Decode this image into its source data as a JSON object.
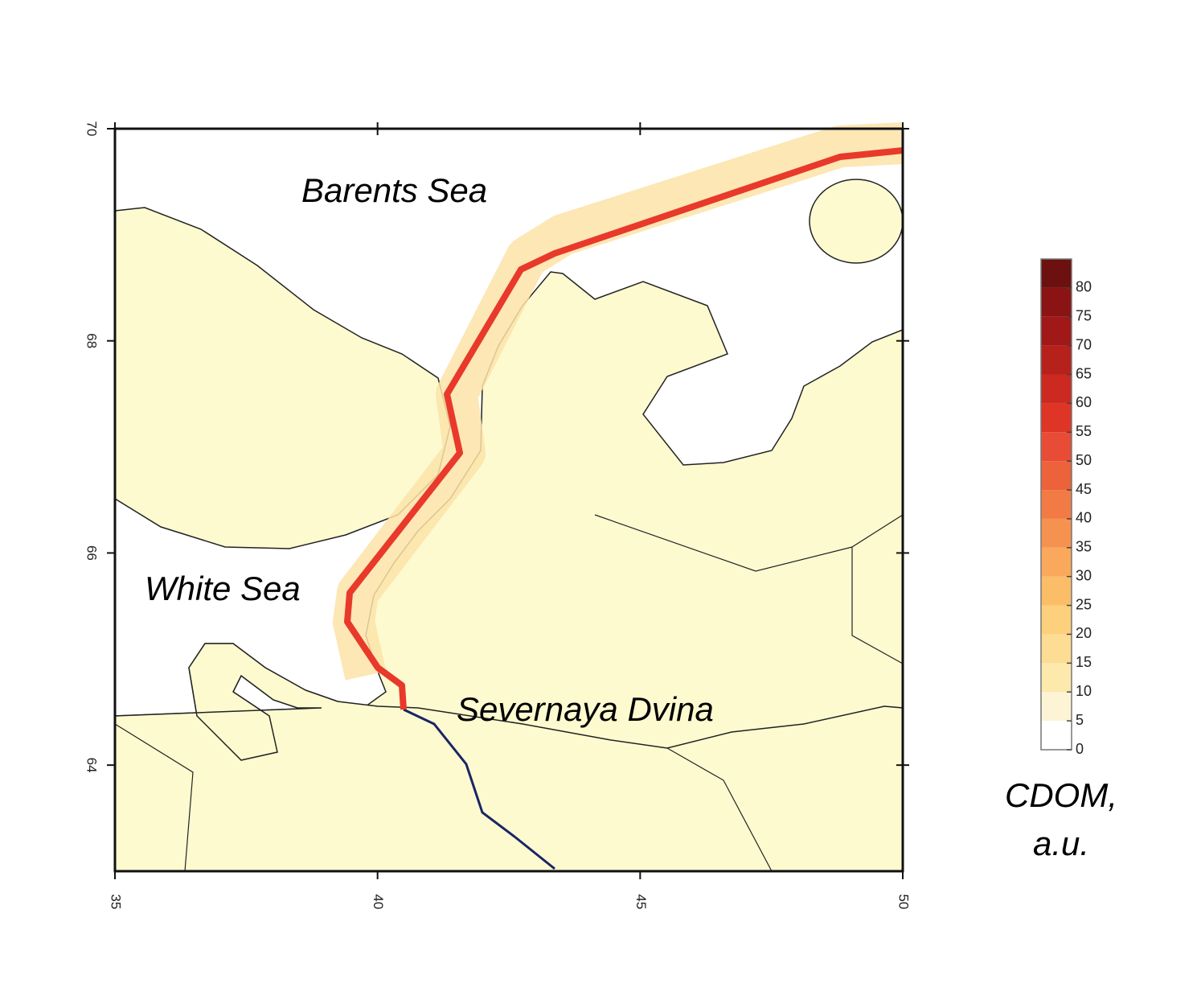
{
  "map": {
    "labels": [
      "Barents Sea",
      "White Sea",
      "Severnaya Dvina"
    ],
    "xlim": [
      35,
      50
    ],
    "xticks": [
      35,
      40,
      45,
      50
    ],
    "ylim": [
      63,
      70
    ],
    "yticks": [
      64,
      66,
      68,
      70
    ],
    "colorbar": {
      "title": [
        "CDOM,",
        "a.u."
      ],
      "lim": [
        0,
        85
      ],
      "ticks": [
        0,
        5,
        10,
        15,
        20,
        25,
        30,
        35,
        40,
        45,
        50,
        55,
        60,
        65,
        70,
        75,
        80
      ],
      "colors": [
        "#ffffff",
        "#fdf4d6",
        "#fde9ac",
        "#fddd93",
        "#fcd07c",
        "#fbbd68",
        "#f9a85c",
        "#f69250",
        "#f27b45",
        "#ec623a",
        "#e84b36",
        "#de3526",
        "#cc2a20",
        "#b7211c",
        "#a01918",
        "#8a1414",
        "#6d1010"
      ]
    }
  }
}
